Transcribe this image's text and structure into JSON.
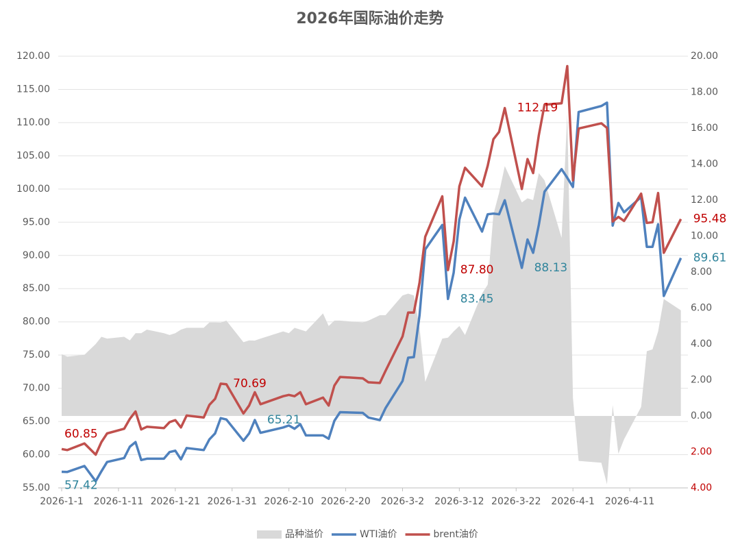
{
  "chart_data": {
    "type": "line",
    "title": "2026年国际油价走势",
    "x": [
      "2026-1-1",
      "2026-1-2",
      "2026-1-5",
      "2026-1-7",
      "2026-1-8",
      "2026-1-9",
      "2026-1-12",
      "2026-1-13",
      "2026-1-14",
      "2026-1-15",
      "2026-1-16",
      "2026-1-19",
      "2026-1-20",
      "2026-1-21",
      "2026-1-22",
      "2026-1-23",
      "2026-1-26",
      "2026-1-27",
      "2026-1-28",
      "2026-1-29",
      "2026-1-30",
      "2026-2-2",
      "2026-2-3",
      "2026-2-4",
      "2026-2-5",
      "2026-2-9",
      "2026-2-10",
      "2026-2-11",
      "2026-2-12",
      "2026-2-13",
      "2026-2-16",
      "2026-2-17",
      "2026-2-18",
      "2026-2-19",
      "2026-2-23",
      "2026-2-24",
      "2026-2-26",
      "2026-2-27",
      "2026-3-2",
      "2026-3-3",
      "2026-3-4",
      "2026-3-5",
      "2026-3-6",
      "2026-3-9",
      "2026-3-10",
      "2026-3-11",
      "2026-3-12",
      "2026-3-13",
      "2026-3-16",
      "2026-3-17",
      "2026-3-18",
      "2026-3-19",
      "2026-3-20",
      "2026-3-23",
      "2026-3-24",
      "2026-3-25",
      "2026-3-26",
      "2026-3-27",
      "2026-3-30",
      "2026-3-31",
      "2026-4-1",
      "2026-4-2",
      "2026-4-6",
      "2026-4-7",
      "2026-4-8",
      "2026-4-9",
      "2026-4-10",
      "2026-4-13",
      "2026-4-14",
      "2026-4-15",
      "2026-4-16",
      "2026-4-17",
      "2026-4-20"
    ],
    "xlim": [
      "2026-1-1",
      "2026-4-21"
    ],
    "xticks": [
      "2026-1-1",
      "2026-1-11",
      "2026-1-21",
      "2026-1-31",
      "2026-2-10",
      "2026-2-20",
      "2026-3-2",
      "2026-3-12",
      "2026-3-22",
      "2026-4-1",
      "2026-4-11"
    ],
    "ylim": [
      55,
      120
    ],
    "yticks": [
      {
        "value": 55,
        "label": "55.00"
      },
      {
        "value": 60,
        "label": "60.00"
      },
      {
        "value": 65,
        "label": "65.00"
      },
      {
        "value": 70,
        "label": "70.00"
      },
      {
        "value": 75,
        "label": "75.00"
      },
      {
        "value": 80,
        "label": "80.00"
      },
      {
        "value": 85,
        "label": "85.00"
      },
      {
        "value": 90,
        "label": "90.00"
      },
      {
        "value": 95,
        "label": "95.00"
      },
      {
        "value": 100,
        "label": "100.00"
      },
      {
        "value": 105,
        "label": "105.00"
      },
      {
        "value": 110,
        "label": "110.00"
      },
      {
        "value": 115,
        "label": "115.00"
      },
      {
        "value": 120,
        "label": "120.00"
      }
    ],
    "y2lim": [
      -4,
      20
    ],
    "y2ticks": [
      {
        "value": -4,
        "label": "4.00"
      },
      {
        "value": -2,
        "label": "2.00"
      },
      {
        "value": 0,
        "label": "0.00"
      },
      {
        "value": 2,
        "label": "2.00"
      },
      {
        "value": 4,
        "label": "4.00"
      },
      {
        "value": 6,
        "label": "6.00"
      },
      {
        "value": 8,
        "label": "8.00"
      },
      {
        "value": 10,
        "label": "10.00"
      },
      {
        "value": 12,
        "label": "12.00"
      },
      {
        "value": 14,
        "label": "14.00"
      },
      {
        "value": 16,
        "label": "16.00"
      },
      {
        "value": 18,
        "label": "18.00"
      },
      {
        "value": 20,
        "label": "20.00"
      }
    ],
    "y2_negative_tick_color": "#c00000",
    "grid": true,
    "legend": "bottom",
    "series": [
      {
        "name": "品种溢价",
        "kind": "area",
        "axis": "y2",
        "color": "#d9d9d9",
        "values": [
          3.43,
          3.3,
          3.4,
          4.0,
          4.4,
          4.3,
          4.4,
          4.2,
          4.6,
          4.6,
          4.8,
          4.6,
          4.5,
          4.6,
          4.8,
          4.9,
          4.9,
          5.2,
          5.2,
          5.19,
          5.3,
          4.1,
          4.2,
          4.19,
          4.3,
          4.7,
          4.6,
          4.9,
          4.8,
          4.7,
          5.7,
          5.0,
          5.3,
          5.3,
          5.2,
          5.3,
          5.6,
          5.6,
          6.7,
          6.8,
          6.7,
          4.9,
          1.9,
          4.3,
          4.35,
          4.7,
          5.0,
          4.5,
          6.8,
          7.3,
          11.2,
          12.4,
          13.89,
          11.87,
          12.1,
          12.0,
          13.5,
          13.1,
          9.9,
          16.8,
          1.0,
          -2.5,
          -2.6,
          -3.8,
          0.6,
          -2.1,
          -1.3,
          0.5,
          3.6,
          3.7,
          4.7,
          6.5,
          5.87
        ]
      },
      {
        "name": "WTI油价",
        "kind": "line",
        "color": "#4f81bd",
        "label_color": "#31859c",
        "values": [
          57.42,
          57.4,
          58.3,
          56.0,
          57.5,
          58.9,
          59.5,
          61.2,
          61.9,
          59.2,
          59.4,
          59.4,
          60.4,
          60.6,
          59.3,
          61.0,
          60.7,
          62.3,
          63.2,
          65.5,
          65.3,
          62.1,
          63.2,
          65.21,
          63.3,
          64.1,
          64.4,
          63.9,
          64.6,
          62.9,
          62.9,
          62.4,
          65.1,
          66.4,
          66.3,
          65.6,
          65.2,
          67.0,
          71.1,
          74.6,
          74.7,
          81.0,
          90.9,
          94.6,
          83.45,
          87.4,
          95.4,
          98.7,
          93.6,
          96.2,
          96.3,
          96.2,
          98.3,
          88.13,
          92.4,
          90.4,
          94.6,
          99.6,
          103.0,
          101.7,
          100.3,
          111.6,
          112.5,
          113.0,
          94.5,
          97.9,
          96.5,
          98.8,
          91.3,
          91.3,
          94.7,
          83.9,
          89.61
        ],
        "value_labels": [
          "57.42",
          null,
          null,
          null,
          null,
          null,
          null,
          null,
          null,
          null,
          null,
          null,
          null,
          null,
          null,
          null,
          null,
          null,
          null,
          null,
          null,
          null,
          null,
          "65.21",
          null,
          null,
          null,
          null,
          null,
          null,
          null,
          null,
          null,
          null,
          null,
          null,
          null,
          null,
          null,
          null,
          null,
          null,
          null,
          null,
          "83.45",
          null,
          null,
          null,
          null,
          null,
          null,
          null,
          null,
          "88.13",
          null,
          null,
          null,
          null,
          null,
          null,
          null,
          null,
          null,
          null,
          null,
          null,
          null,
          null,
          null,
          null,
          null,
          null,
          "89.61"
        ]
      },
      {
        "name": "brent油价",
        "kind": "line",
        "color": "#c0504d",
        "label_color": "#c00000",
        "values": [
          60.85,
          60.7,
          61.7,
          60.0,
          61.9,
          63.2,
          63.9,
          65.4,
          66.5,
          63.8,
          64.2,
          64.0,
          64.9,
          65.2,
          64.1,
          65.9,
          65.6,
          67.5,
          68.4,
          70.69,
          70.6,
          66.2,
          67.4,
          69.4,
          67.6,
          68.8,
          69.0,
          68.8,
          69.4,
          67.6,
          68.6,
          67.4,
          70.4,
          71.7,
          71.5,
          70.9,
          70.8,
          72.6,
          77.8,
          81.4,
          81.4,
          85.9,
          92.8,
          98.9,
          87.8,
          92.1,
          100.4,
          103.2,
          100.4,
          103.5,
          107.5,
          108.6,
          112.19,
          100.0,
          104.5,
          102.4,
          108.1,
          112.7,
          112.9,
          118.5,
          101.3,
          109.1,
          109.9,
          109.2,
          95.1,
          95.8,
          95.2,
          99.3,
          94.9,
          95.0,
          99.4,
          90.4,
          95.48
        ],
        "value_labels": [
          "60.85",
          null,
          null,
          null,
          null,
          null,
          null,
          null,
          null,
          null,
          null,
          null,
          null,
          null,
          null,
          null,
          null,
          null,
          null,
          "70.69",
          null,
          null,
          null,
          null,
          null,
          null,
          null,
          null,
          null,
          null,
          null,
          null,
          null,
          null,
          null,
          null,
          null,
          null,
          null,
          null,
          null,
          null,
          null,
          null,
          "87.80",
          null,
          null,
          null,
          null,
          null,
          null,
          null,
          "112.19",
          null,
          null,
          null,
          null,
          null,
          null,
          null,
          null,
          null,
          null,
          null,
          null,
          null,
          null,
          null,
          null,
          null,
          null,
          null,
          "95.48"
        ]
      }
    ]
  }
}
